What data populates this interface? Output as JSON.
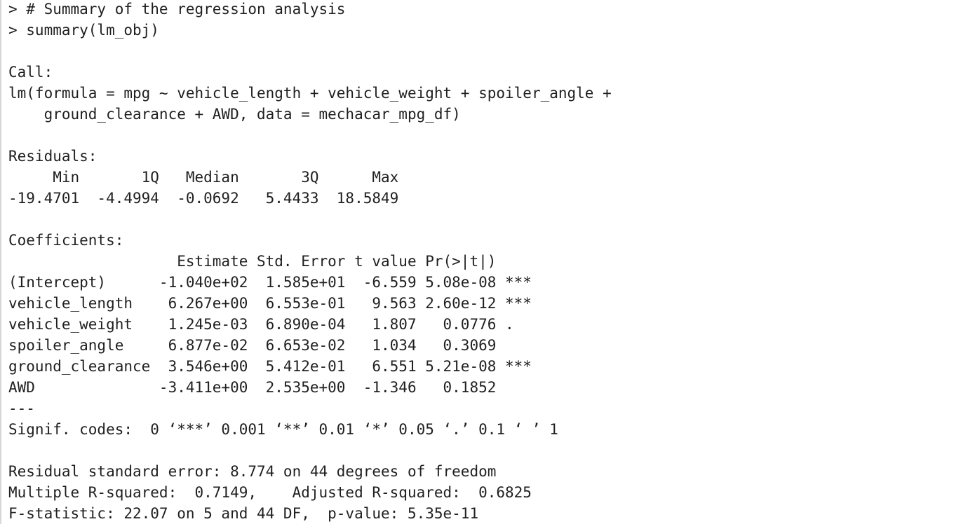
{
  "console": {
    "blocks": [
      [
        "> # Summary of the regression analysis",
        "> summary(lm_obj)"
      ],
      [
        "Call:",
        "lm(formula = mpg ~ vehicle_length + vehicle_weight + spoiler_angle + ",
        "    ground_clearance + AWD, data = mechacar_mpg_df)"
      ],
      [
        "Residuals:",
        "     Min       1Q   Median       3Q      Max ",
        "-19.4701  -4.4994  -0.0692   5.4433  18.5849 "
      ],
      [
        "Coefficients:",
        "                   Estimate Std. Error t value Pr(>|t|)    ",
        "(Intercept)      -1.040e+02  1.585e+01  -6.559 5.08e-08 ***",
        "vehicle_length    6.267e+00  6.553e-01   9.563 2.60e-12 ***",
        "vehicle_weight    1.245e-03  6.890e-04   1.807   0.0776 .  ",
        "spoiler_angle     6.877e-02  6.653e-02   1.034   0.3069    ",
        "ground_clearance  3.546e+00  5.412e-01   6.551 5.21e-08 ***",
        "AWD              -3.411e+00  2.535e+00  -1.346   0.1852    ",
        "---",
        "Signif. codes:  0 ‘***’ 0.001 ‘**’ 0.01 ‘*’ 0.05 ‘.’ 0.1 ‘ ’ 1"
      ],
      [
        "Residual standard error: 8.774 on 44 degrees of freedom",
        "Multiple R-squared:  0.7149,\tAdjusted R-squared:  0.6825 ",
        "F-statistic: 22.07 on 5 and 44 DF,  p-value: 5.35e-11"
      ]
    ]
  }
}
